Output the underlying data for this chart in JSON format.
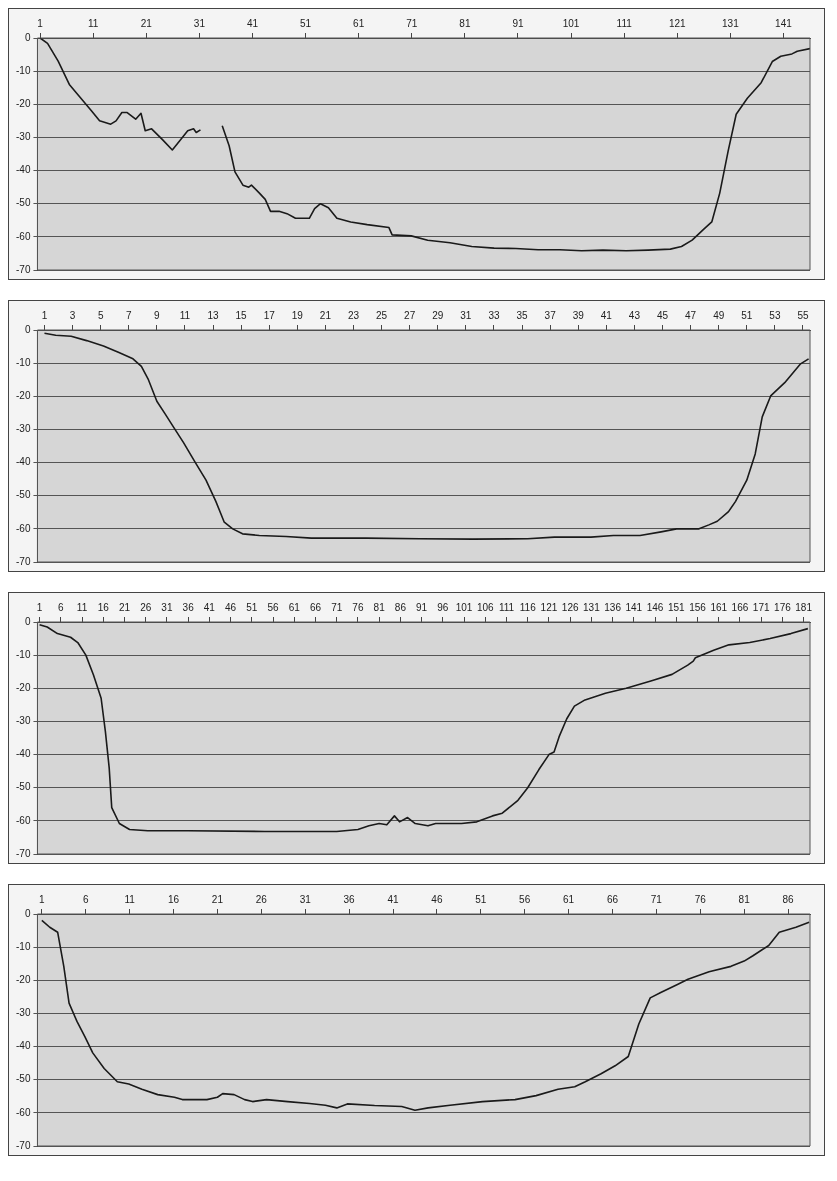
{
  "chart_data": [
    {
      "type": "line",
      "color": "#1a1a1a",
      "xlim": [
        0.5,
        146
      ],
      "xticks": [
        1,
        11,
        21,
        31,
        41,
        51,
        61,
        71,
        81,
        91,
        101,
        111,
        121,
        131,
        141
      ],
      "ylim": [
        -70,
        0
      ],
      "yticks": [
        0,
        -10,
        -20,
        -30,
        -40,
        -50,
        -60,
        -70
      ],
      "grid": "y",
      "x": [
        1,
        2.4,
        4.4,
        6.5,
        8.6,
        10.7,
        12.2,
        14.3,
        15.3,
        16.4,
        17.4,
        19,
        20,
        20.8,
        22,
        24,
        25.9,
        27.3,
        28.8,
        29.9,
        30.4,
        31.2,
        33,
        35.3,
        36.6,
        37.7,
        39.2,
        40.3,
        40.8,
        42.3,
        43.4,
        44.4,
        46,
        47.5,
        49.1,
        51.7,
        52.7,
        53.8,
        55.3,
        56.9,
        59.5,
        62.6,
        66.7,
        67.3,
        70.9,
        74,
        78.2,
        82.3,
        86.5,
        90.6,
        94.8,
        98.9,
        103,
        107,
        111.4,
        115.5,
        119.7,
        121.8,
        123.8,
        125.9,
        127.5,
        129,
        130.6,
        132.1,
        134.2,
        136.8,
        138.9,
        140.5,
        142.6,
        143.6,
        146
      ],
      "values": [
        0,
        -1.6,
        -7,
        -14,
        -18,
        -22,
        -25,
        -26,
        -25,
        -22.5,
        -22.5,
        -24.5,
        -22.7,
        -28,
        -27.4,
        -30.6,
        -33.8,
        -31,
        -28,
        -27.4,
        -28.5,
        -27.7,
        null,
        -26.5,
        -32.5,
        -40.4,
        -44.4,
        -45,
        -44.4,
        -46.8,
        -48.7,
        -52.3,
        -52.3,
        -53,
        -54.4,
        -54.4,
        -51.5,
        -50,
        -51.2,
        -54.4,
        -55.5,
        -56.3,
        -57.2,
        -59.4,
        -59.7,
        -61,
        -61.8,
        -62.9,
        -63.4,
        -63.5,
        -63.9,
        -63.9,
        -64.2,
        -64,
        -64.2,
        -64,
        -63.7,
        -62.9,
        -61,
        -57.8,
        -55.5,
        -46.8,
        -34,
        -23,
        -18.2,
        -13.5,
        -7.1,
        -5.5,
        -4.8,
        -4,
        -3.2
      ]
    },
    {
      "type": "line",
      "color": "#1a1a1a",
      "xlim": [
        0.5,
        55.5
      ],
      "xticks": [
        1,
        3,
        5,
        7,
        9,
        11,
        13,
        15,
        17,
        19,
        21,
        23,
        25,
        27,
        29,
        31,
        33,
        35,
        37,
        39,
        41,
        43,
        45,
        47,
        49,
        51,
        53,
        55
      ],
      "ylim": [
        -70,
        0
      ],
      "yticks": [
        0,
        -10,
        -20,
        -30,
        -40,
        -50,
        -60,
        -70
      ],
      "grid": "y",
      "x": [
        1,
        1.8,
        2.9,
        4,
        5.2,
        6.3,
        7.3,
        7.9,
        8.4,
        9,
        9.6,
        10.2,
        10.9,
        11.7,
        12.5,
        13.2,
        13.8,
        14.4,
        15.1,
        16.3,
        18.2,
        20,
        23.9,
        27.7,
        31.5,
        35.4,
        37.3,
        39.9,
        41.5,
        43.4,
        44.9,
        46,
        47.6,
        48.3,
        48.9,
        49.7,
        50.2,
        51,
        51.6,
        52.1,
        52.7,
        53.7,
        54.8,
        55.4
      ],
      "values": [
        -1,
        -1.6,
        -1.9,
        -3.2,
        -4.8,
        -6.8,
        -8.7,
        -11,
        -15,
        -21.5,
        -25.4,
        -29.4,
        -34,
        -39.7,
        -45.3,
        -51.7,
        -58,
        -60,
        -61.5,
        -62,
        -62.3,
        -62.8,
        -62.8,
        -63,
        -63.1,
        -63,
        -62.5,
        -62.5,
        -62,
        -62,
        -60.9,
        -60,
        -60,
        -58.8,
        -57.7,
        -54.8,
        -51.7,
        -45.3,
        -37.4,
        -26.2,
        -19.9,
        -15.9,
        -10.3,
        -8.7
      ]
    },
    {
      "type": "line",
      "color": "#1a1a1a",
      "xlim": [
        0.5,
        182.5
      ],
      "xticks": [
        1,
        6,
        11,
        16,
        21,
        26,
        31,
        36,
        41,
        46,
        51,
        56,
        61,
        66,
        71,
        76,
        81,
        86,
        91,
        96,
        101,
        106,
        111,
        116,
        121,
        126,
        131,
        136,
        141,
        146,
        151,
        156,
        161,
        166,
        171,
        176,
        181
      ],
      "ylim": [
        -70,
        0
      ],
      "yticks": [
        0,
        -10,
        -20,
        -30,
        -40,
        -50,
        -60,
        -70
      ],
      "grid": "y",
      "x": [
        1,
        2.8,
        5.2,
        8.3,
        10,
        11.9,
        13.7,
        15.5,
        16.5,
        17.4,
        18,
        19.8,
        22.2,
        26.5,
        36,
        54,
        71,
        76,
        78.6,
        81,
        82.8,
        84.6,
        85.8,
        87.7,
        89.5,
        92.5,
        94.3,
        100.4,
        104,
        107.7,
        110,
        113.7,
        116,
        118.6,
        121,
        122.2,
        123.4,
        125.2,
        127,
        129.5,
        134.3,
        139.2,
        145.2,
        150,
        153.7,
        155,
        155.5,
        159.8,
        163.4,
        168.3,
        173.1,
        178,
        182
      ],
      "values": [
        -0.8,
        -1.5,
        -3.5,
        -4.6,
        -6.2,
        -10,
        -16,
        -23,
        -33,
        -44,
        -56,
        -60.8,
        -62.6,
        -63,
        -63,
        -63.2,
        -63.2,
        -62.6,
        -61.5,
        -60.8,
        -61.2,
        -58.5,
        -60.3,
        -59,
        -60.8,
        -61.5,
        -60.8,
        -60.8,
        -60.3,
        -58.5,
        -57.7,
        -53.8,
        -50,
        -44.6,
        -40,
        -39.2,
        -34.6,
        -29.2,
        -25.4,
        -23.5,
        -21.5,
        -20,
        -17.7,
        -15.8,
        -13,
        -11.8,
        -10.8,
        -8.5,
        -6.9,
        -6.2,
        -5,
        -3.5,
        -2
      ]
    },
    {
      "type": "line",
      "color": "#1a1a1a",
      "xlim": [
        0.5,
        88.5
      ],
      "xticks": [
        1,
        6,
        11,
        16,
        21,
        26,
        31,
        36,
        41,
        46,
        51,
        56,
        61,
        66,
        71,
        76,
        81,
        86
      ],
      "ylim": [
        -70,
        0
      ],
      "yticks": [
        0,
        -10,
        -20,
        -30,
        -40,
        -50,
        -60,
        -70
      ],
      "grid": "y",
      "x": [
        1,
        1.9,
        2.8,
        3.5,
        4.1,
        5,
        5.9,
        6.8,
        8.1,
        9.6,
        10.9,
        12.4,
        14.2,
        16.1,
        17,
        19.8,
        21,
        21.6,
        22.9,
        24.1,
        25,
        26.6,
        29,
        31.5,
        33.3,
        34.6,
        35.8,
        38.9,
        42,
        43.5,
        45,
        47.5,
        51.2,
        54.9,
        57.3,
        59.8,
        61.7,
        62.9,
        64.7,
        66.3,
        67.8,
        69,
        70.3,
        71.5,
        73.4,
        74.6,
        77,
        79.5,
        81,
        82,
        83.8,
        85,
        86.9,
        88.4
      ],
      "values": [
        -1.9,
        -4,
        -5.5,
        -15.8,
        -26.9,
        -32.4,
        -37,
        -41.9,
        -46.6,
        -50.6,
        -51.3,
        -52.9,
        -54.5,
        -55.3,
        -56,
        -56,
        -55.3,
        -54.2,
        -54.5,
        -56,
        -56.6,
        -56,
        -56.6,
        -57.2,
        -57.7,
        -58.5,
        -57.3,
        -57.8,
        -58.1,
        -59.2,
        -58.5,
        -57.7,
        -56.6,
        -56,
        -54.8,
        -52.9,
        -52.1,
        -50.6,
        -48.2,
        -45.8,
        -43,
        -33.2,
        -25.3,
        -23.7,
        -21.3,
        -19.7,
        -17.4,
        -15.8,
        -14.2,
        -12.6,
        -9.5,
        -5.5,
        -4,
        -2.5
      ]
    }
  ]
}
